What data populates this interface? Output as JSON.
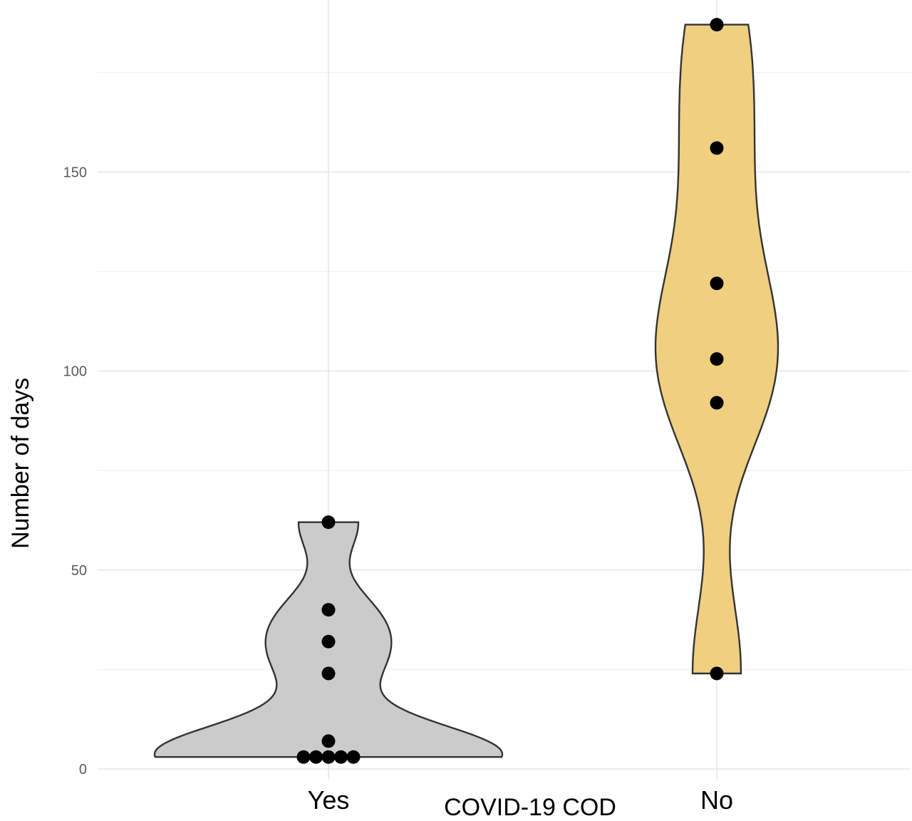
{
  "chart_data": {
    "type": "violin",
    "title": "",
    "xlabel": "COVID-19 COD",
    "ylabel": "Number of days",
    "ylim": [
      0,
      190
    ],
    "y_ticks": [
      0,
      50,
      100,
      150
    ],
    "y_tick_labels": [
      "0",
      "50",
      "100",
      "150"
    ],
    "grid": true,
    "legend": "none",
    "categories": [
      "Yes",
      "No"
    ],
    "series": [
      {
        "category": "Yes",
        "fill_color": "#cbcbcb",
        "points": [
          62,
          40,
          32,
          24,
          7,
          3,
          3,
          3,
          3,
          3
        ]
      },
      {
        "category": "No",
        "fill_color": "#f0cf80",
        "points": [
          187,
          156,
          122,
          103,
          92,
          24
        ]
      }
    ]
  }
}
